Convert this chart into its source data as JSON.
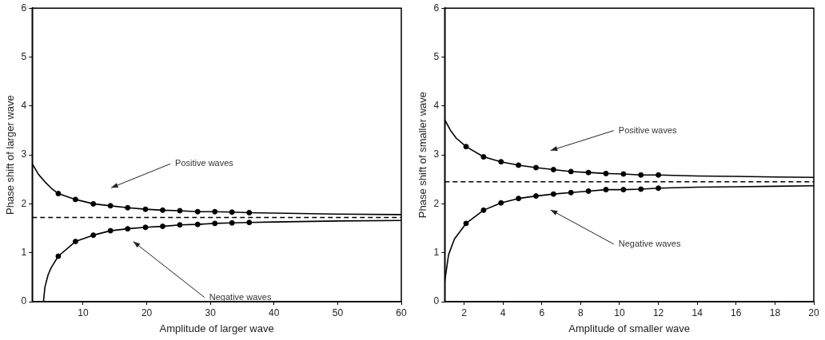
{
  "chart_data": [
    {
      "type": "line",
      "xlabel": "Amplitude of larger wave",
      "ylabel": "Phase shift of larger wave",
      "xlim": [
        2,
        60
      ],
      "ylim": [
        0,
        6
      ],
      "xticks": [
        10,
        20,
        30,
        40,
        50,
        60
      ],
      "yticks": [
        0,
        1,
        2,
        3,
        4,
        5,
        6
      ],
      "grid": false,
      "legend": false,
      "series": [
        {
          "marker": "none",
          "color": "#000000",
          "x": [
            2,
            3,
            4,
            5,
            6.1,
            8.8,
            11.6,
            14.3,
            17.0,
            19.8,
            22.5,
            25.2,
            28.0,
            30.7,
            33.4,
            36.1,
            40,
            50,
            60
          ],
          "values": [
            2.82,
            2.6,
            2.45,
            2.32,
            2.21,
            2.09,
            2.0,
            1.96,
            1.92,
            1.89,
            1.87,
            1.86,
            1.84,
            1.84,
            1.83,
            1.82,
            1.81,
            1.79,
            1.78
          ]
        },
        {
          "type": "scatter",
          "marker": "circle",
          "color": "#000000",
          "x": [
            6.1,
            8.8,
            11.6,
            14.3,
            17.0,
            19.8,
            22.5,
            25.2,
            28.0,
            30.7,
            33.4,
            36.1
          ],
          "values": [
            2.21,
            2.09,
            2.0,
            1.96,
            1.92,
            1.89,
            1.87,
            1.86,
            1.84,
            1.84,
            1.83,
            1.82
          ]
        },
        {
          "marker": "none",
          "color": "#000000",
          "x": [
            3.77,
            4,
            4.5,
            5,
            6.1,
            8.8,
            11.6,
            14.3,
            17.0,
            19.8,
            22.5,
            25.2,
            28.0,
            30.7,
            33.4,
            36.1,
            40,
            50,
            60
          ],
          "values": [
            0,
            0.3,
            0.55,
            0.7,
            0.93,
            1.23,
            1.36,
            1.45,
            1.49,
            1.52,
            1.54,
            1.57,
            1.58,
            1.6,
            1.61,
            1.62,
            1.63,
            1.65,
            1.66
          ]
        },
        {
          "type": "scatter",
          "marker": "circle",
          "color": "#000000",
          "x": [
            6.1,
            8.8,
            11.6,
            14.3,
            17.0,
            19.8,
            22.5,
            25.2,
            28.0,
            30.7,
            33.4,
            36.1
          ],
          "values": [
            0.93,
            1.23,
            1.36,
            1.45,
            1.49,
            1.52,
            1.54,
            1.57,
            1.58,
            1.6,
            1.61,
            1.62
          ]
        }
      ],
      "ref_lines": [
        {
          "axis": "y",
          "value": 1.72,
          "color": "#000000",
          "line_style": "dashed"
        }
      ],
      "annotations": [
        "Positive waves",
        "Negative waves"
      ]
    },
    {
      "type": "line",
      "xlabel": "Amplitude of smaller wave",
      "ylabel": "Phase shift of smaller wave",
      "xlim": [
        1,
        20
      ],
      "ylim": [
        0,
        6
      ],
      "xticks": [
        2,
        4,
        6,
        8,
        10,
        12,
        14,
        16,
        18,
        20
      ],
      "yticks": [
        0,
        1,
        2,
        3,
        4,
        5,
        6
      ],
      "grid": false,
      "legend": false,
      "series": [
        {
          "marker": "none",
          "color": "#000000",
          "x": [
            1,
            1.3,
            1.6,
            2.1,
            3.0,
            3.9,
            4.8,
            5.7,
            6.6,
            7.5,
            8.4,
            9.3,
            10.2,
            11.1,
            12.0,
            14,
            16,
            18,
            20
          ],
          "values": [
            3.72,
            3.5,
            3.34,
            3.17,
            2.96,
            2.86,
            2.79,
            2.74,
            2.7,
            2.66,
            2.64,
            2.62,
            2.61,
            2.59,
            2.59,
            2.57,
            2.56,
            2.55,
            2.54
          ]
        },
        {
          "type": "scatter",
          "marker": "circle",
          "color": "#000000",
          "x": [
            2.1,
            3.0,
            3.9,
            4.8,
            5.7,
            6.6,
            7.5,
            8.4,
            9.3,
            10.2,
            11.1,
            12.0
          ],
          "values": [
            3.17,
            2.96,
            2.86,
            2.79,
            2.74,
            2.7,
            2.66,
            2.64,
            2.62,
            2.61,
            2.59,
            2.59
          ]
        },
        {
          "marker": "none",
          "color": "#000000",
          "x": [
            1,
            1.2,
            1.5,
            2.1,
            3.0,
            3.9,
            4.8,
            5.7,
            6.6,
            7.5,
            8.4,
            9.3,
            10.2,
            11.1,
            12.0,
            14,
            16,
            18,
            20
          ],
          "values": [
            0.41,
            0.96,
            1.28,
            1.6,
            1.87,
            2.02,
            2.11,
            2.16,
            2.2,
            2.23,
            2.26,
            2.29,
            2.29,
            2.3,
            2.32,
            2.34,
            2.35,
            2.36,
            2.37
          ]
        },
        {
          "type": "scatter",
          "marker": "circle",
          "color": "#000000",
          "x": [
            2.1,
            3.0,
            3.9,
            4.8,
            5.7,
            6.6,
            7.5,
            8.4,
            9.3,
            10.2,
            11.1,
            12.0
          ],
          "values": [
            1.6,
            1.87,
            2.02,
            2.11,
            2.16,
            2.2,
            2.23,
            2.26,
            2.29,
            2.29,
            2.3,
            2.32
          ]
        }
      ],
      "ref_lines": [
        {
          "axis": "y",
          "value": 2.45,
          "color": "#000000",
          "line_style": "dashed"
        }
      ],
      "annotations": [
        "Positive waves",
        "Negative waves"
      ]
    }
  ]
}
